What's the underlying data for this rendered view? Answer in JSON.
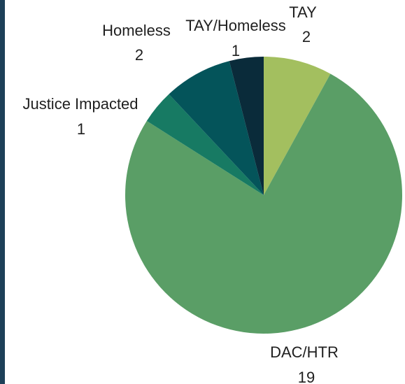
{
  "chart_data": {
    "type": "pie",
    "title": "",
    "start_angle_deg": 0,
    "direction": "clockwise",
    "slices": [
      {
        "label": "TAY",
        "value": 2,
        "color": "#a3bf5f"
      },
      {
        "label": "DAC/HTR",
        "value": 19,
        "color": "#5a9e66"
      },
      {
        "label": "Justice Impacted",
        "value": 1,
        "color": "#177a63"
      },
      {
        "label": "Homeless",
        "value": 2,
        "color": "#04545a"
      },
      {
        "label": "TAY/Homeless",
        "value": 1,
        "color": "#0a2b3a"
      }
    ],
    "legend": "none",
    "data_labels": "outside"
  },
  "frame": {
    "accent_color": "#1d4058"
  }
}
